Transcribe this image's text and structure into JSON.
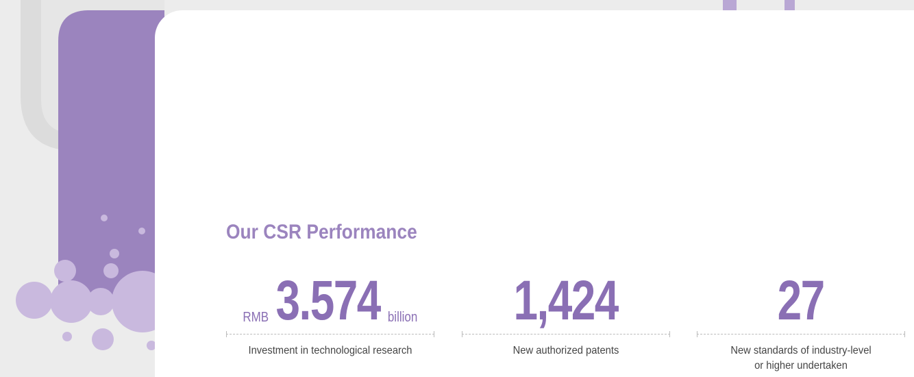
{
  "heading": "Our CSR Performance",
  "stats": [
    {
      "prefix": "RMB",
      "value": "3.574",
      "suffix": "billion",
      "caption": [
        "Investment in technological research"
      ]
    },
    {
      "value": "1,424",
      "caption": [
        "New authorized patents"
      ]
    },
    {
      "value": "27",
      "caption": [
        "New standards of industry-level",
        "or higher undertaken"
      ]
    }
  ]
}
